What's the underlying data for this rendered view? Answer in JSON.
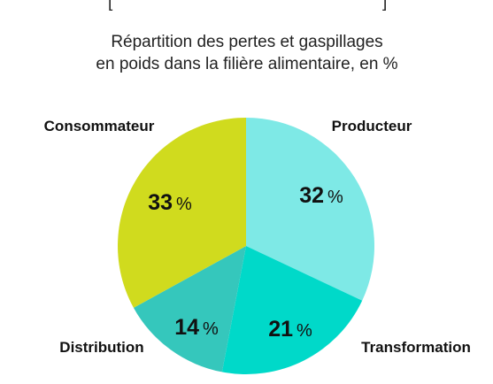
{
  "chart_data": {
    "type": "pie",
    "title_fragment": "[",
    "title_fragment_right": "]",
    "subtitle_line1": "Répartition des pertes et gaspillages",
    "subtitle_line2": "en poids dans la filière alimentaire, en %",
    "unit": "%",
    "slices": [
      {
        "label": "Producteur",
        "value": 32,
        "color": "#7ee9e6"
      },
      {
        "label": "Transformation",
        "value": 21,
        "color": "#00d9c9"
      },
      {
        "label": "Distribution",
        "value": 14,
        "color": "#35c7bc"
      },
      {
        "label": "Consommateur",
        "value": 33,
        "color": "#d0db1e"
      }
    ]
  }
}
